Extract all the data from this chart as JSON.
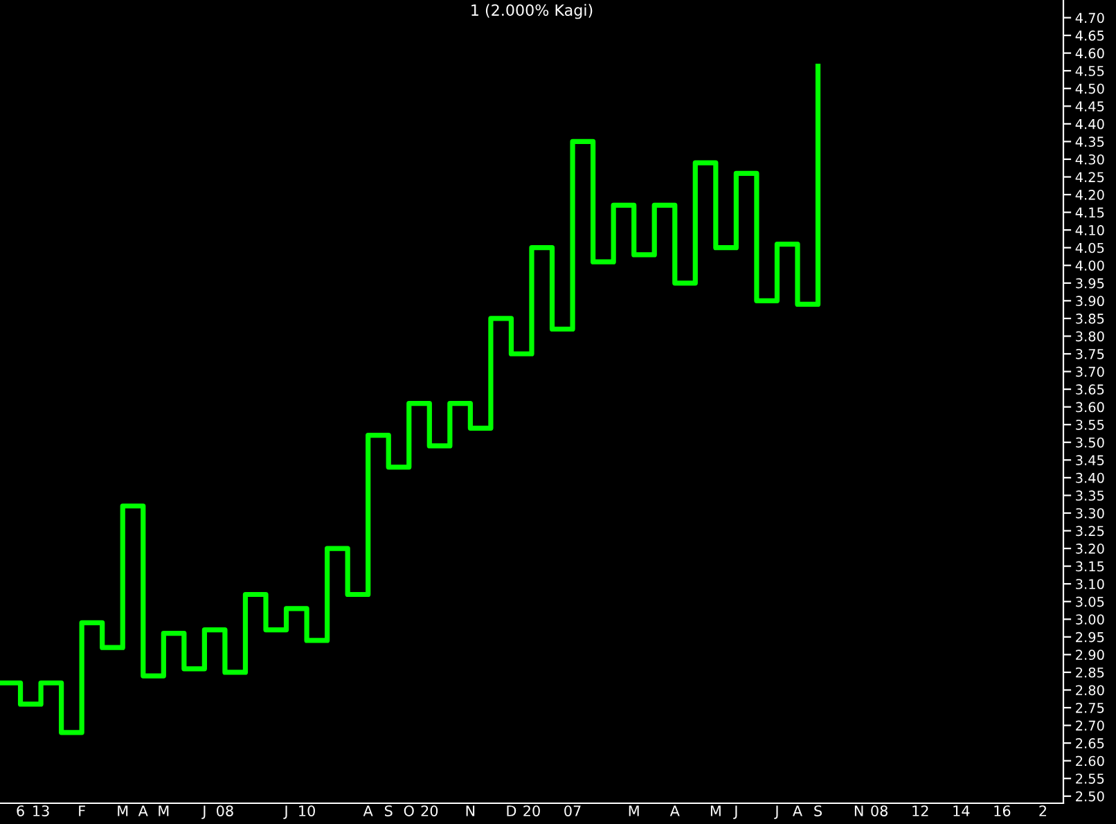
{
  "chart_data": {
    "type": "step",
    "title": "1 (2.000% Kagi)",
    "categories": [
      null,
      "6",
      "13",
      null,
      "F",
      null,
      "M",
      "A",
      "M",
      null,
      "J",
      "08",
      null,
      null,
      "J",
      "10",
      null,
      null,
      "A",
      "S",
      "O",
      "20",
      null,
      "N",
      null,
      "D",
      "20",
      null,
      "07",
      null,
      null,
      "M",
      null,
      "A",
      null,
      "M",
      "J",
      null,
      "J",
      "A",
      "S",
      null,
      "N",
      "08",
      null,
      "12",
      null,
      "14",
      null,
      "16",
      null,
      "2",
      null
    ],
    "series": [
      {
        "color": "#00ff00",
        "values": [
          2.82,
          2.76,
          2.82,
          2.68,
          2.99,
          2.92,
          3.32,
          2.84,
          2.96,
          2.86,
          2.97,
          2.85,
          3.07,
          2.97,
          3.03,
          2.94,
          3.2,
          3.07,
          3.52,
          3.43,
          3.61,
          3.49,
          3.61,
          3.54,
          3.85,
          3.75,
          4.05,
          3.82,
          4.35,
          4.01,
          4.17,
          4.03,
          4.17,
          3.95,
          4.29,
          4.05,
          4.26,
          3.9,
          4.06,
          3.89,
          4.57,
          null,
          null,
          null,
          null,
          null,
          null,
          null,
          null,
          null,
          null,
          null,
          null
        ]
      }
    ],
    "ylim": [
      2.48,
      4.75
    ],
    "yticks": [
      {
        "value": 2.5,
        "label": "2.50"
      },
      {
        "value": 2.55,
        "label": "2.55"
      },
      {
        "value": 2.6,
        "label": "2.60"
      },
      {
        "value": 2.65,
        "label": "2.65"
      },
      {
        "value": 2.7,
        "label": "2.70"
      },
      {
        "value": 2.75,
        "label": "2.75"
      },
      {
        "value": 2.8,
        "label": "2.80"
      },
      {
        "value": 2.85,
        "label": "2.85"
      },
      {
        "value": 2.9,
        "label": "2.90"
      },
      {
        "value": 2.95,
        "label": "2.95"
      },
      {
        "value": 3.0,
        "label": "3.00"
      },
      {
        "value": 3.05,
        "label": "3.05"
      },
      {
        "value": 3.1,
        "label": "3.10"
      },
      {
        "value": 3.15,
        "label": "3.15"
      },
      {
        "value": 3.2,
        "label": "3.20"
      },
      {
        "value": 3.25,
        "label": "3.25"
      },
      {
        "value": 3.3,
        "label": "3.30"
      },
      {
        "value": 3.35,
        "label": "3.35"
      },
      {
        "value": 3.4,
        "label": "3.40"
      },
      {
        "value": 3.45,
        "label": "3.45"
      },
      {
        "value": 3.5,
        "label": "3.50"
      },
      {
        "value": 3.55,
        "label": "3.55"
      },
      {
        "value": 3.6,
        "label": "3.60"
      },
      {
        "value": 3.65,
        "label": "3.65"
      },
      {
        "value": 3.7,
        "label": "3.70"
      },
      {
        "value": 3.75,
        "label": "3.75"
      },
      {
        "value": 3.8,
        "label": "3.80"
      },
      {
        "value": 3.85,
        "label": "3.85"
      },
      {
        "value": 3.9,
        "label": "3.90"
      },
      {
        "value": 3.95,
        "label": "3.95"
      },
      {
        "value": 4.0,
        "label": "4.00"
      },
      {
        "value": 4.05,
        "label": "4.05"
      },
      {
        "value": 4.1,
        "label": "4.10"
      },
      {
        "value": 4.15,
        "label": "4.15"
      },
      {
        "value": 4.2,
        "label": "4.20"
      },
      {
        "value": 4.25,
        "label": "4.25"
      },
      {
        "value": 4.3,
        "label": "4.30"
      },
      {
        "value": 4.35,
        "label": "4.35"
      },
      {
        "value": 4.4,
        "label": "4.40"
      },
      {
        "value": 4.45,
        "label": "4.45"
      },
      {
        "value": 4.5,
        "label": "4.50"
      },
      {
        "value": 4.55,
        "label": "4.55"
      },
      {
        "value": 4.6,
        "label": "4.60"
      },
      {
        "value": 4.65,
        "label": "4.65"
      },
      {
        "value": 4.7,
        "label": "4.70"
      }
    ],
    "grid": false,
    "legend": false,
    "marker": "none",
    "line_style": "solid"
  }
}
